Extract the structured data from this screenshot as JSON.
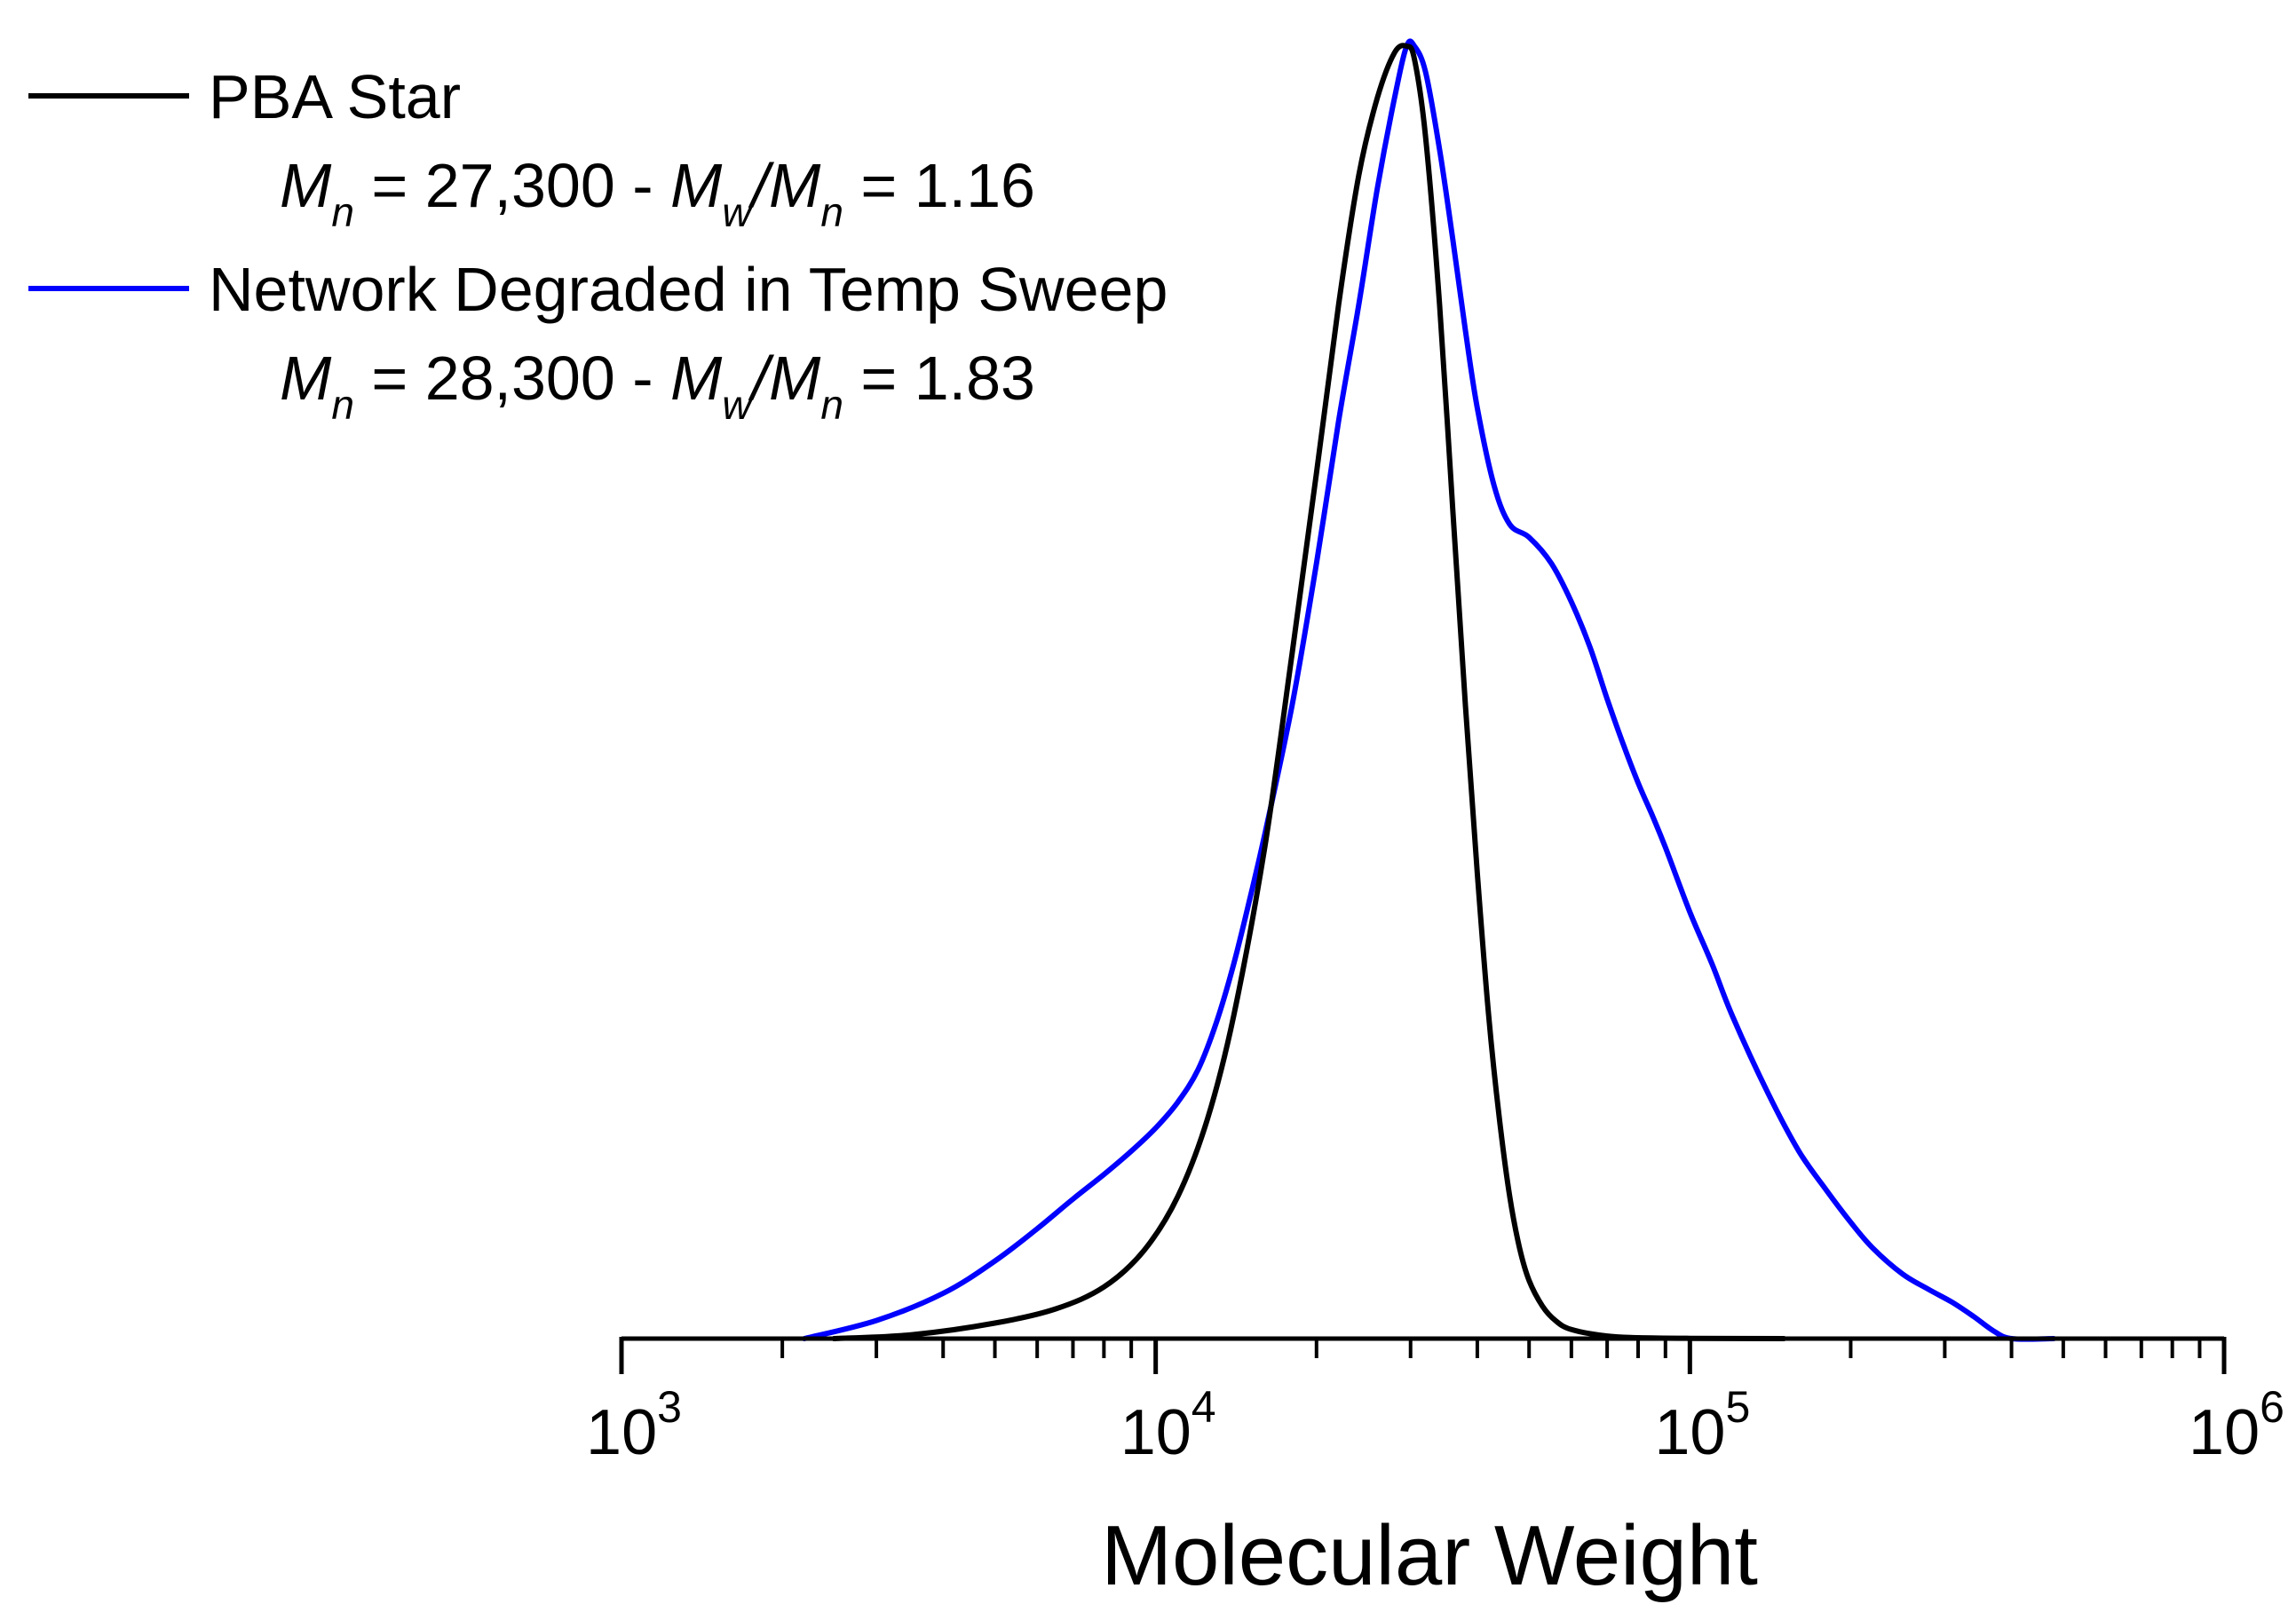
{
  "colors": {
    "pba_star": "#000000",
    "network_degraded": "#0000ff",
    "axis": "#000000",
    "background": "#ffffff"
  },
  "chart_data": {
    "type": "line",
    "title": "",
    "xlabel": "Molecular Weight",
    "ylabel": "",
    "xscale": "log",
    "xlim": [
      1000,
      1000000
    ],
    "ylim": [
      0,
      1.0
    ],
    "x_ticks": [
      {
        "value": 1000,
        "base": "10",
        "exp": "3"
      },
      {
        "value": 10000,
        "base": "10",
        "exp": "4"
      },
      {
        "value": 100000,
        "base": "10",
        "exp": "5"
      },
      {
        "value": 1000000,
        "base": "10",
        "exp": "6"
      }
    ],
    "y_axis_visible": false,
    "legend_position": "top-left",
    "series": [
      {
        "name": "PBA Star",
        "color": "#000000",
        "stats": {
          "mn_value": "27,300",
          "pdi_value": "1.16"
        },
        "x": [
          2500,
          3500,
          5000,
          6500,
          8000,
          9500,
          11000,
          12500,
          14000,
          16000,
          18000,
          20000,
          22000,
          24000,
          26000,
          28000,
          29500,
          30500,
          32000,
          34000,
          36000,
          38000,
          40000,
          42000,
          44000,
          46000,
          48000,
          50000,
          53000,
          56000,
          60000,
          70000,
          80000,
          100000,
          150000
        ],
        "y": [
          0.0,
          0.003,
          0.012,
          0.023,
          0.04,
          0.068,
          0.11,
          0.17,
          0.25,
          0.38,
          0.53,
          0.67,
          0.8,
          0.9,
          0.96,
          0.995,
          1.0,
          0.99,
          0.93,
          0.8,
          0.64,
          0.49,
          0.36,
          0.25,
          0.17,
          0.11,
          0.07,
          0.045,
          0.025,
          0.014,
          0.007,
          0.002,
          0.0007,
          0.0002,
          0.0
        ]
      },
      {
        "name": "Network Degraded in Temp Sweep",
        "color": "#0000ff",
        "stats": {
          "mn_value": "28,300",
          "pdi_value": "1.83"
        },
        "x": [
          2200,
          3000,
          4000,
          5000,
          6000,
          7000,
          8000,
          9000,
          10000,
          11000,
          12000,
          13000,
          14000,
          15000,
          16000,
          18000,
          20000,
          22000,
          24000,
          26000,
          28000,
          29500,
          30500,
          32000,
          34000,
          36000,
          38000,
          40000,
          43000,
          46000,
          50000,
          55000,
          60000,
          65000,
          70000,
          75000,
          80000,
          85000,
          90000,
          100000,
          110000,
          120000,
          140000,
          160000,
          180000,
          200000,
          220000,
          250000,
          280000,
          310000,
          340000,
          370000,
          400000,
          480000
        ],
        "y": [
          0.0,
          0.014,
          0.035,
          0.06,
          0.085,
          0.108,
          0.127,
          0.145,
          0.163,
          0.183,
          0.208,
          0.245,
          0.29,
          0.34,
          0.39,
          0.49,
          0.6,
          0.71,
          0.8,
          0.89,
          0.96,
          1.0,
          1.0,
          0.98,
          0.92,
          0.85,
          0.78,
          0.72,
          0.66,
          0.63,
          0.62,
          0.6,
          0.57,
          0.535,
          0.495,
          0.46,
          0.43,
          0.405,
          0.38,
          0.33,
          0.29,
          0.25,
          0.19,
          0.145,
          0.115,
          0.09,
          0.07,
          0.05,
          0.038,
          0.028,
          0.017,
          0.006,
          0.0,
          0.0
        ]
      }
    ]
  }
}
